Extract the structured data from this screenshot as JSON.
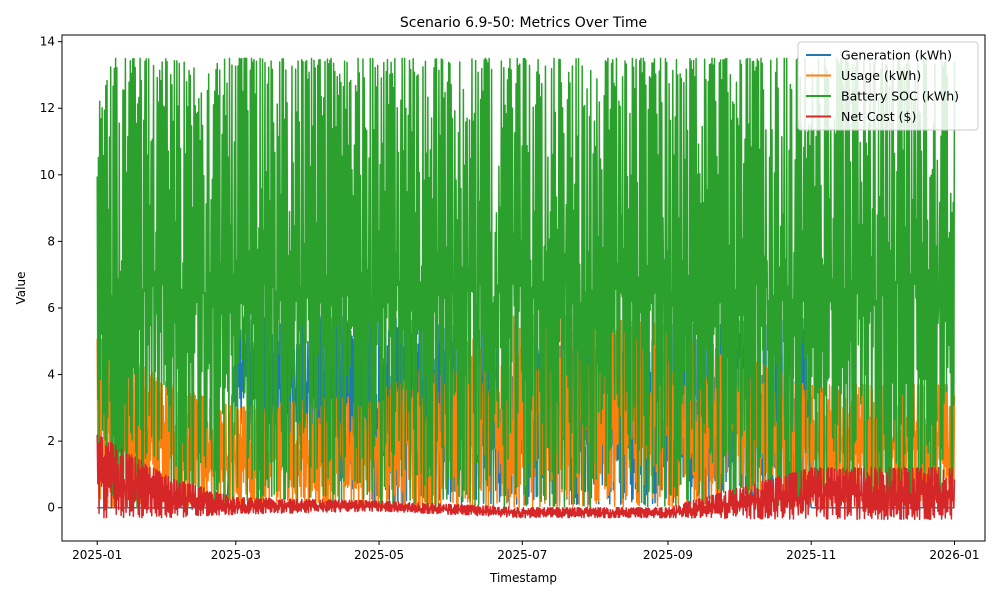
{
  "chart_data": {
    "type": "line",
    "title": "Scenario 6.9-50: Metrics Over Time",
    "xlabel": "Timestamp",
    "ylabel": "Value",
    "x_range": [
      "2024-12-17",
      "2026-01-14"
    ],
    "ylim": [
      -1,
      14.2
    ],
    "x_ticks": [
      "2025-01",
      "2025-03",
      "2025-05",
      "2025-07",
      "2025-09",
      "2025-11",
      "2026-01"
    ],
    "y_ticks": [
      0,
      2,
      4,
      6,
      8,
      10,
      12,
      14
    ],
    "grid": false,
    "legend_position": "top-right",
    "series": [
      {
        "name": "Generation (kWh)",
        "color": "#1f77b4",
        "envelope": {
          "dates": [
            "2025-01-01",
            "2025-02-25",
            "2025-03-01",
            "2025-05-01",
            "2025-07-01",
            "2025-09-01",
            "2025-10-31",
            "2025-11-01",
            "2026-01-01"
          ],
          "max": [
            0.0,
            0.0,
            5.75,
            5.75,
            5.2,
            5.5,
            5.7,
            0.0,
            0.0
          ],
          "min": [
            0.0,
            0.0,
            2.6,
            0.1,
            0.1,
            0.1,
            0.0,
            0.0,
            0.0
          ]
        }
      },
      {
        "name": "Usage (kWh)",
        "color": "#ff7f0e",
        "envelope": {
          "dates": [
            "2025-01-01",
            "2025-02-01",
            "2025-03-01",
            "2025-05-01",
            "2025-07-01",
            "2025-09-01",
            "2025-11-01",
            "2026-01-01"
          ],
          "max": [
            5.2,
            3.7,
            3.0,
            3.5,
            5.9,
            5.5,
            3.7,
            3.7
          ],
          "min": [
            0.0,
            0.0,
            0.0,
            0.0,
            0.0,
            0.0,
            0.0,
            0.0
          ]
        }
      },
      {
        "name": "Battery SOC (kWh)",
        "color": "#2ca02c",
        "envelope": {
          "dates": [
            "2025-01-01",
            "2025-01-08",
            "2025-03-01",
            "2025-05-01",
            "2025-07-01",
            "2025-09-01",
            "2025-11-01",
            "2026-01-01"
          ],
          "max": [
            12.05,
            13.5,
            13.5,
            13.5,
            13.5,
            13.5,
            13.5,
            13.5
          ],
          "min": [
            0.0,
            0.0,
            0.0,
            0.0,
            0.0,
            0.0,
            0.0,
            0.0
          ]
        }
      },
      {
        "name": "Net Cost ($)",
        "color": "#d62728",
        "envelope": {
          "dates": [
            "2025-01-01",
            "2025-02-01",
            "2025-03-01",
            "2025-05-01",
            "2025-07-01",
            "2025-09-01",
            "2025-11-01",
            "2026-01-01"
          ],
          "max": [
            2.2,
            0.9,
            0.3,
            0.2,
            0.0,
            0.0,
            1.2,
            1.2
          ],
          "min": [
            -0.3,
            -0.3,
            -0.2,
            -0.1,
            -0.3,
            -0.3,
            -0.35,
            -0.35
          ]
        }
      }
    ]
  }
}
